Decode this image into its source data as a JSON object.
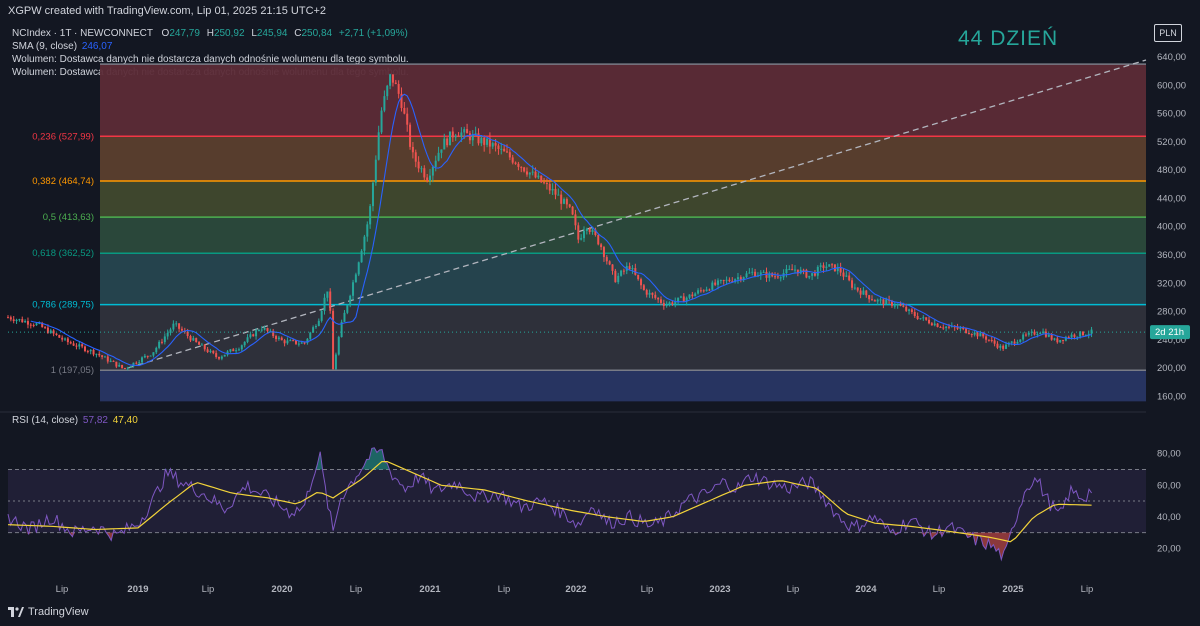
{
  "header": {
    "title": "XGPW created with TradingView.com, Lip 01, 2025 21:15 UTC+2",
    "symbol": "NCIndex · 1T · NEWCONNECT",
    "o_label": "O",
    "o": "247,79",
    "h_label": "H",
    "h": "250,92",
    "l_label": "L",
    "l": "245,94",
    "c_label": "C",
    "c": "250,84",
    "change": "+2,71 (+1,09%)",
    "sma_label": "SMA (9, close)",
    "sma_value": "246,07",
    "volume_note_1": "Wolumen: Dostawca danych nie dostarcza danych odnośnie wolumenu dla tego symbolu.",
    "volume_note_2": "Wolumen: Dostawca danych nie dostarcza danych odnośnie wolumenu dla tego symbolu.",
    "day_badge": "44 DZIEŃ",
    "currency": "PLN",
    "countdown": "2d 21h"
  },
  "rsi": {
    "label": "RSI (14, close)",
    "value": "57,82",
    "ma_value": "47,40",
    "ticks": [
      "80,00",
      "60,00",
      "40,00",
      "20,00"
    ]
  },
  "colors": {
    "background": "#131722",
    "up": "#26a69a",
    "down": "#ef5350",
    "sma": "#2962ff",
    "rsi": "#7e57c2",
    "rsi_ma": "#f2d33a"
  },
  "footer": {
    "brand": "TradingView"
  },
  "chart_data": {
    "type": "candlestick",
    "price_ticks": [
      "640,00",
      "600,00",
      "560,00",
      "520,00",
      "480,00",
      "440,00",
      "400,00",
      "360,00",
      "320,00",
      "280,00",
      "240,00",
      "200,00",
      "160,00"
    ],
    "ylim": [
      145,
      650
    ],
    "time_labels": [
      "Lip",
      "2019",
      "Lip",
      "2020",
      "Lip",
      "2021",
      "Lip",
      "2022",
      "Lip",
      "2023",
      "Lip",
      "2024",
      "Lip",
      "2025",
      "Lip"
    ],
    "last_price": 250.84,
    "fib_levels": [
      {
        "ratio": 0.236,
        "price": 527.99,
        "label": "0,236 (527,99)",
        "color": "#f23645"
      },
      {
        "ratio": 0.382,
        "price": 464.74,
        "label": "0,382 (464,74)",
        "color": "#ff9800"
      },
      {
        "ratio": 0.5,
        "price": 413.63,
        "label": "0,5 (413,63)",
        "color": "#4caf50"
      },
      {
        "ratio": 0.618,
        "price": 362.52,
        "label": "0,618 (362,52)",
        "color": "#089981"
      },
      {
        "ratio": 0.786,
        "price": 289.75,
        "label": "0,786 (289,75)",
        "color": "#00bcd4"
      },
      {
        "ratio": 1,
        "price": 197.05,
        "label": "1 (197,05)",
        "color": "#787b86"
      }
    ],
    "fib_top": 630,
    "fib_bottom": 153,
    "price_series": [
      {
        "t": 2018.0,
        "v": 272
      },
      {
        "t": 2018.2,
        "v": 262
      },
      {
        "t": 2018.4,
        "v": 238
      },
      {
        "t": 2018.6,
        "v": 222
      },
      {
        "t": 2018.8,
        "v": 199
      },
      {
        "t": 2019.0,
        "v": 222
      },
      {
        "t": 2019.15,
        "v": 262
      },
      {
        "t": 2019.3,
        "v": 236
      },
      {
        "t": 2019.45,
        "v": 215
      },
      {
        "t": 2019.6,
        "v": 230
      },
      {
        "t": 2019.75,
        "v": 258
      },
      {
        "t": 2019.9,
        "v": 238
      },
      {
        "t": 2020.05,
        "v": 235
      },
      {
        "t": 2020.15,
        "v": 270
      },
      {
        "t": 2020.22,
        "v": 318
      },
      {
        "t": 2020.25,
        "v": 198
      },
      {
        "t": 2020.3,
        "v": 255
      },
      {
        "t": 2020.4,
        "v": 330
      },
      {
        "t": 2020.5,
        "v": 415
      },
      {
        "t": 2020.58,
        "v": 560
      },
      {
        "t": 2020.65,
        "v": 615
      },
      {
        "t": 2020.72,
        "v": 580
      },
      {
        "t": 2020.8,
        "v": 500
      },
      {
        "t": 2020.9,
        "v": 470
      },
      {
        "t": 2021.0,
        "v": 515
      },
      {
        "t": 2021.1,
        "v": 535
      },
      {
        "t": 2021.2,
        "v": 528
      },
      {
        "t": 2021.35,
        "v": 515
      },
      {
        "t": 2021.5,
        "v": 495
      },
      {
        "t": 2021.65,
        "v": 470
      },
      {
        "t": 2021.8,
        "v": 445
      },
      {
        "t": 2021.9,
        "v": 420
      },
      {
        "t": 2021.95,
        "v": 380
      },
      {
        "t": 2022.0,
        "v": 405
      },
      {
        "t": 2022.1,
        "v": 375
      },
      {
        "t": 2022.2,
        "v": 325
      },
      {
        "t": 2022.3,
        "v": 345
      },
      {
        "t": 2022.4,
        "v": 310
      },
      {
        "t": 2022.55,
        "v": 290
      },
      {
        "t": 2022.7,
        "v": 300
      },
      {
        "t": 2022.85,
        "v": 315
      },
      {
        "t": 2023.0,
        "v": 325
      },
      {
        "t": 2023.15,
        "v": 335
      },
      {
        "t": 2023.3,
        "v": 330
      },
      {
        "t": 2023.45,
        "v": 340
      },
      {
        "t": 2023.55,
        "v": 330
      },
      {
        "t": 2023.65,
        "v": 345
      },
      {
        "t": 2023.75,
        "v": 340
      },
      {
        "t": 2023.85,
        "v": 315
      },
      {
        "t": 2024.0,
        "v": 296
      },
      {
        "t": 2024.15,
        "v": 290
      },
      {
        "t": 2024.3,
        "v": 272
      },
      {
        "t": 2024.45,
        "v": 260
      },
      {
        "t": 2024.6,
        "v": 255
      },
      {
        "t": 2024.75,
        "v": 245
      },
      {
        "t": 2024.88,
        "v": 228
      },
      {
        "t": 2025.0,
        "v": 242
      },
      {
        "t": 2025.15,
        "v": 253
      },
      {
        "t": 2025.25,
        "v": 238
      },
      {
        "t": 2025.35,
        "v": 246
      },
      {
        "t": 2025.5,
        "v": 250.84
      }
    ],
    "rsi_series": [
      {
        "t": 2018.0,
        "v": 40
      },
      {
        "t": 2018.15,
        "v": 32
      },
      {
        "t": 2018.3,
        "v": 40
      },
      {
        "t": 2018.45,
        "v": 30
      },
      {
        "t": 2018.6,
        "v": 34
      },
      {
        "t": 2018.75,
        "v": 28
      },
      {
        "t": 2018.9,
        "v": 36
      },
      {
        "t": 2019.0,
        "v": 50
      },
      {
        "t": 2019.1,
        "v": 68
      },
      {
        "t": 2019.2,
        "v": 62
      },
      {
        "t": 2019.35,
        "v": 55
      },
      {
        "t": 2019.5,
        "v": 45
      },
      {
        "t": 2019.65,
        "v": 60
      },
      {
        "t": 2019.8,
        "v": 52
      },
      {
        "t": 2019.95,
        "v": 43
      },
      {
        "t": 2020.05,
        "v": 46
      },
      {
        "t": 2020.12,
        "v": 70
      },
      {
        "t": 2020.16,
        "v": 78
      },
      {
        "t": 2020.2,
        "v": 55
      },
      {
        "t": 2020.25,
        "v": 30
      },
      {
        "t": 2020.3,
        "v": 52
      },
      {
        "t": 2020.4,
        "v": 65
      },
      {
        "t": 2020.5,
        "v": 78
      },
      {
        "t": 2020.58,
        "v": 82
      },
      {
        "t": 2020.65,
        "v": 68
      },
      {
        "t": 2020.75,
        "v": 58
      },
      {
        "t": 2020.85,
        "v": 66
      },
      {
        "t": 2020.95,
        "v": 56
      },
      {
        "t": 2021.1,
        "v": 62
      },
      {
        "t": 2021.25,
        "v": 52
      },
      {
        "t": 2021.4,
        "v": 55
      },
      {
        "t": 2021.55,
        "v": 46
      },
      {
        "t": 2021.7,
        "v": 50
      },
      {
        "t": 2021.85,
        "v": 42
      },
      {
        "t": 2021.95,
        "v": 35
      },
      {
        "t": 2022.05,
        "v": 48
      },
      {
        "t": 2022.15,
        "v": 36
      },
      {
        "t": 2022.3,
        "v": 40
      },
      {
        "t": 2022.45,
        "v": 34
      },
      {
        "t": 2022.55,
        "v": 38
      },
      {
        "t": 2022.7,
        "v": 50
      },
      {
        "t": 2022.85,
        "v": 55
      },
      {
        "t": 2022.95,
        "v": 62
      },
      {
        "t": 2023.05,
        "v": 58
      },
      {
        "t": 2023.15,
        "v": 66
      },
      {
        "t": 2023.25,
        "v": 62
      },
      {
        "t": 2023.4,
        "v": 58
      },
      {
        "t": 2023.55,
        "v": 62
      },
      {
        "t": 2023.65,
        "v": 52
      },
      {
        "t": 2023.75,
        "v": 40
      },
      {
        "t": 2023.85,
        "v": 33
      },
      {
        "t": 2024.0,
        "v": 40
      },
      {
        "t": 2024.1,
        "v": 30
      },
      {
        "t": 2024.25,
        "v": 38
      },
      {
        "t": 2024.4,
        "v": 28
      },
      {
        "t": 2024.5,
        "v": 34
      },
      {
        "t": 2024.65,
        "v": 27
      },
      {
        "t": 2024.8,
        "v": 22
      },
      {
        "t": 2024.9,
        "v": 14
      },
      {
        "t": 2024.97,
        "v": 38
      },
      {
        "t": 2025.05,
        "v": 60
      },
      {
        "t": 2025.12,
        "v": 64
      },
      {
        "t": 2025.2,
        "v": 50
      },
      {
        "t": 2025.28,
        "v": 40
      },
      {
        "t": 2025.35,
        "v": 56
      },
      {
        "t": 2025.45,
        "v": 52
      },
      {
        "t": 2025.5,
        "v": 57.82
      }
    ],
    "rsi_ma_series": [
      {
        "t": 2018.0,
        "v": 35
      },
      {
        "t": 2018.3,
        "v": 34
      },
      {
        "t": 2018.6,
        "v": 32
      },
      {
        "t": 2018.9,
        "v": 33
      },
      {
        "t": 2019.1,
        "v": 48
      },
      {
        "t": 2019.3,
        "v": 62
      },
      {
        "t": 2019.55,
        "v": 55
      },
      {
        "t": 2019.8,
        "v": 52
      },
      {
        "t": 2020.0,
        "v": 48
      },
      {
        "t": 2020.15,
        "v": 56
      },
      {
        "t": 2020.25,
        "v": 52
      },
      {
        "t": 2020.45,
        "v": 64
      },
      {
        "t": 2020.6,
        "v": 76
      },
      {
        "t": 2020.8,
        "v": 68
      },
      {
        "t": 2021.0,
        "v": 60
      },
      {
        "t": 2021.3,
        "v": 57
      },
      {
        "t": 2021.6,
        "v": 50
      },
      {
        "t": 2021.9,
        "v": 44
      },
      {
        "t": 2022.15,
        "v": 40
      },
      {
        "t": 2022.4,
        "v": 37
      },
      {
        "t": 2022.6,
        "v": 40
      },
      {
        "t": 2022.85,
        "v": 50
      },
      {
        "t": 2023.1,
        "v": 60
      },
      {
        "t": 2023.35,
        "v": 63
      },
      {
        "t": 2023.6,
        "v": 58
      },
      {
        "t": 2023.8,
        "v": 42
      },
      {
        "t": 2024.0,
        "v": 36
      },
      {
        "t": 2024.25,
        "v": 34
      },
      {
        "t": 2024.5,
        "v": 31
      },
      {
        "t": 2024.8,
        "v": 27
      },
      {
        "t": 2024.95,
        "v": 24
      },
      {
        "t": 2025.1,
        "v": 40
      },
      {
        "t": 2025.25,
        "v": 48
      },
      {
        "t": 2025.5,
        "v": 47.4
      }
    ],
    "xlim": [
      2018.0,
      2025.6
    ]
  }
}
